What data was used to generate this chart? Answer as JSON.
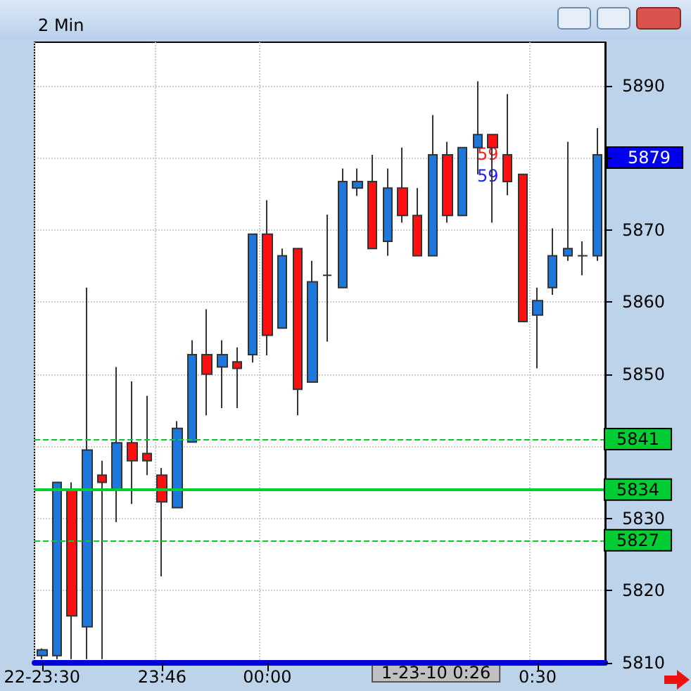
{
  "chart_data": {
    "type": "candlestick",
    "title": "2 Min",
    "categories": [
      "22-23:30",
      null,
      null,
      null,
      null,
      null,
      null,
      null,
      "23:46",
      null,
      null,
      null,
      null,
      null,
      null,
      "00:00",
      null,
      null,
      null,
      null,
      null,
      null,
      null,
      null,
      null,
      null,
      null,
      null,
      null,
      null,
      null,
      null,
      null,
      "0:30",
      null,
      null,
      null,
      null
    ],
    "ohlc": [
      [
        5811,
        5812,
        5810.5,
        5811.8
      ],
      [
        5811,
        5835,
        5810.5,
        5835
      ],
      [
        5834,
        5835,
        5810.5,
        5816.5
      ],
      [
        5815,
        5862,
        5810.5,
        5839.5
      ],
      [
        5836,
        5838,
        5810.5,
        5835
      ],
      [
        5834,
        5851,
        5829.5,
        5840.5
      ],
      [
        5840.5,
        5849,
        5832,
        5838
      ],
      [
        5839,
        5847,
        5836,
        5838
      ],
      [
        5836,
        5837,
        5822,
        5832.3
      ],
      [
        5831.5,
        5843.5,
        5831.5,
        5842.5
      ],
      [
        5840.6,
        5854.7,
        5840.6,
        5852.7
      ],
      [
        5852.7,
        5859,
        5844.3,
        5850
      ],
      [
        5851,
        5854.7,
        5845.3,
        5852.7
      ],
      [
        5851.7,
        5853.7,
        5845.3,
        5850.8
      ],
      [
        5852.7,
        5869.4,
        5851.6,
        5869.4
      ],
      [
        5869.4,
        5874.1,
        5852.6,
        5855.4
      ],
      [
        5856.4,
        5867.4,
        5856.4,
        5866.4
      ],
      [
        5867.4,
        5867.4,
        5844.3,
        5847.9
      ],
      [
        5848.9,
        5865.7,
        5848.9,
        5862.8
      ],
      [
        5863.7,
        5872.1,
        5854.5,
        5863.7
      ],
      [
        5862,
        5878.5,
        5862,
        5876.7
      ],
      [
        5875.8,
        5878.5,
        5874.7,
        5876.7
      ],
      [
        5876.7,
        5880.4,
        5867.4,
        5867.4
      ],
      [
        5868.4,
        5878.5,
        5866.4,
        5875.8
      ],
      [
        5875.8,
        5881.4,
        5871,
        5872
      ],
      [
        5872,
        5875.8,
        5866.4,
        5866.4
      ],
      [
        5866.4,
        5885.9,
        5866.4,
        5880.4
      ],
      [
        5880.4,
        5882.2,
        5871,
        5872
      ],
      [
        5872,
        5881.4,
        5872,
        5881.4
      ],
      [
        5881.4,
        5890.6,
        5877.7,
        5883.2
      ],
      [
        5883.2,
        5883.2,
        5871,
        5881.4
      ],
      [
        5880.4,
        5888.8,
        5874.8,
        5876.7
      ],
      [
        5877.7,
        5877.7,
        5857.3,
        5857.3
      ],
      [
        5858.2,
        5862,
        5850.8,
        5860.2
      ],
      [
        5862,
        5870.2,
        5861,
        5866.4
      ],
      [
        5866.4,
        5882.2,
        5865.7,
        5867.4
      ],
      [
        5866.4,
        5868.4,
        5863.7,
        5866.4
      ],
      [
        5866.4,
        5884.1,
        5865.7,
        5880.4
      ]
    ],
    "colors": [
      "#1e78dc",
      "#1e78dc",
      "#ff1010",
      "#1e78dc",
      "#ff1010",
      "#1e78dc",
      "#ff1010",
      "#ff1010",
      "#ff1010",
      "#1e78dc",
      "#1e78dc",
      "#ff1010",
      "#1e78dc",
      "#ff1010",
      "#1e78dc",
      "#ff1010",
      "#1e78dc",
      "#ff1010",
      "#1e78dc",
      "#333333",
      "#1e78dc",
      "#1e78dc",
      "#ff1010",
      "#1e78dc",
      "#ff1010",
      "#ff1010",
      "#1e78dc",
      "#ff1010",
      "#1e78dc",
      "#1e78dc",
      "#ff1010",
      "#ff1010",
      "#ff1010",
      "#1e78dc",
      "#1e78dc",
      "#1e78dc",
      "#333333",
      "#1e78dc"
    ],
    "ylim": [
      5810,
      5896
    ],
    "yticks": [
      5810,
      5820,
      5830,
      {
        "value": 5840,
        "label": null
      },
      5850,
      5860,
      5870,
      {
        "value": 5880,
        "label": null
      },
      5890
    ],
    "grid": true,
    "ref_lines": [
      {
        "axis": "y",
        "value": 5841,
        "label": "5841",
        "color": "#00cc33",
        "line_style": "dashed"
      },
      {
        "axis": "y",
        "value": 5834,
        "label": "5834",
        "color": "#00cc33",
        "line_style": "solid"
      },
      {
        "axis": "y",
        "value": 5827,
        "label": "5827",
        "color": "#00cc33",
        "line_style": "dashed"
      }
    ],
    "annotations": [
      "5879",
      {
        "text": "59",
        "y": 5880.5
      },
      {
        "text": "59",
        "y": 5877.5
      },
      "1-23-10 0:26"
    ]
  }
}
